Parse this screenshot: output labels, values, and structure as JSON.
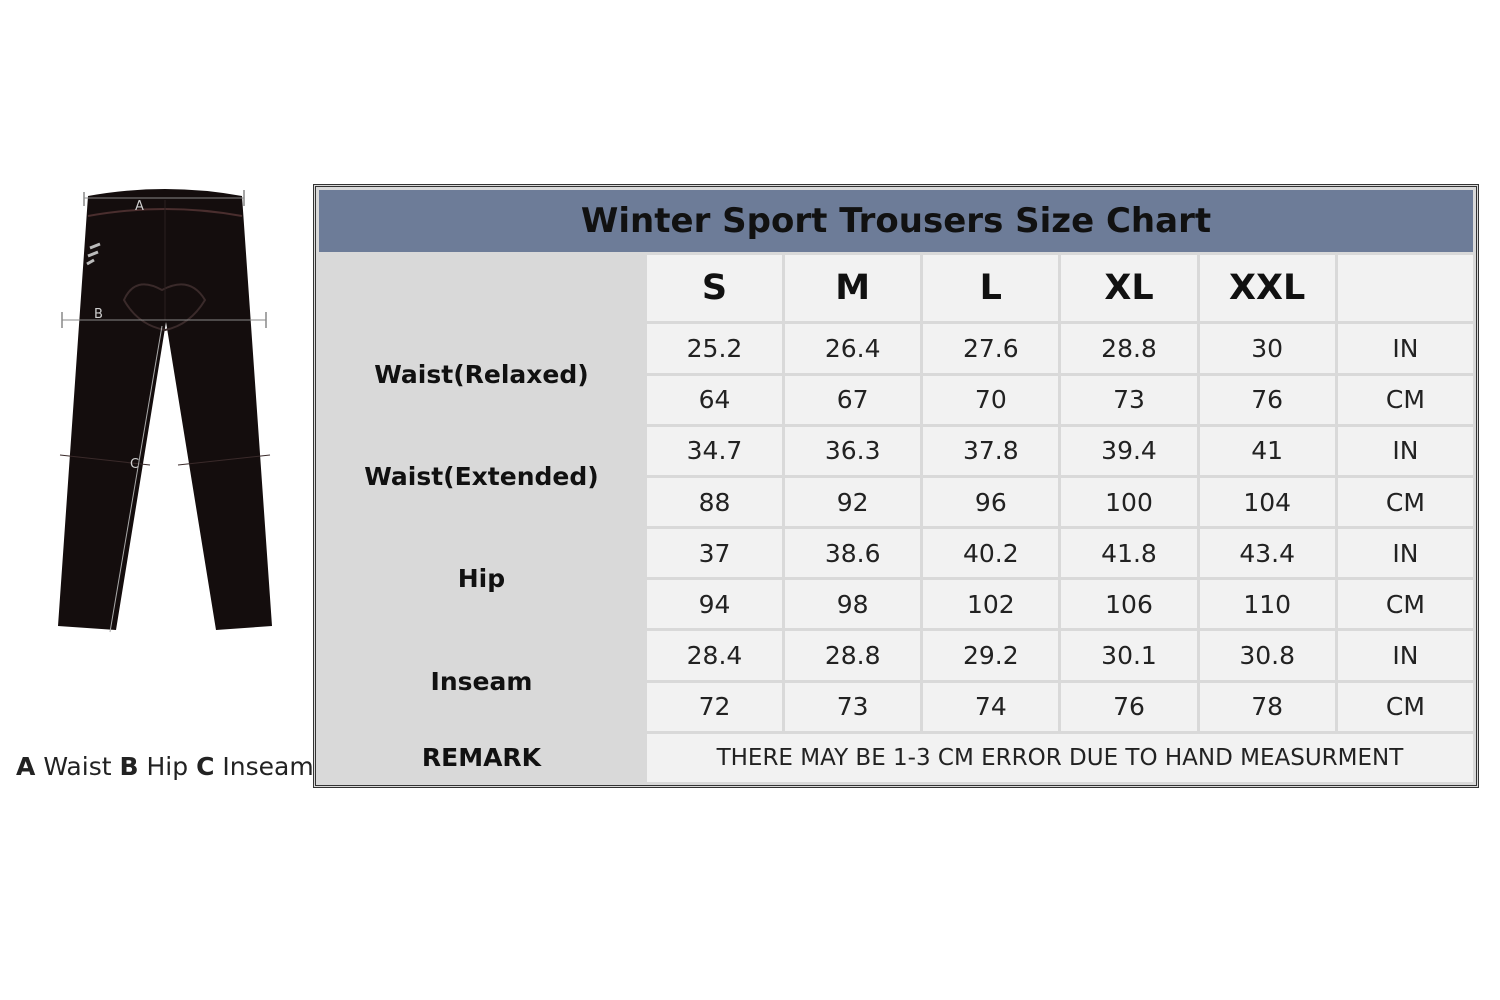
{
  "legend": {
    "a_key": "A",
    "a_label": "Waist",
    "b_key": "B",
    "b_label": "Hip",
    "c_key": "C",
    "c_label": "Inseam"
  },
  "illustration": {
    "mark_a": "A",
    "mark_b": "B",
    "mark_c": "C"
  },
  "table": {
    "title": "Winter Sport Trousers Size Chart",
    "sizes": [
      "S",
      "M",
      "L",
      "XL",
      "XXL"
    ],
    "rows": [
      {
        "label": "Waist(Relaxed)",
        "in": [
          "25.2",
          "26.4",
          "27.6",
          "28.8",
          "30"
        ],
        "in_unit": "IN",
        "cm": [
          "64",
          "67",
          "70",
          "73",
          "76"
        ],
        "cm_unit": "CM"
      },
      {
        "label": "Waist(Extended)",
        "in": [
          "34.7",
          "36.3",
          "37.8",
          "39.4",
          "41"
        ],
        "in_unit": "IN",
        "cm": [
          "88",
          "92",
          "96",
          "100",
          "104"
        ],
        "cm_unit": "CM"
      },
      {
        "label": "Hip",
        "in": [
          "37",
          "38.6",
          "40.2",
          "41.8",
          "43.4"
        ],
        "in_unit": "IN",
        "cm": [
          "94",
          "98",
          "102",
          "106",
          "110"
        ],
        "cm_unit": "CM"
      },
      {
        "label": "Inseam",
        "in": [
          "28.4",
          "28.8",
          "29.2",
          "30.1",
          "30.8"
        ],
        "in_unit": "IN",
        "cm": [
          "72",
          "73",
          "74",
          "76",
          "78"
        ],
        "cm_unit": "CM"
      }
    ],
    "remark_label": "REMARK",
    "remark_text": "THERE MAY BE 1-3 CM ERROR DUE TO HAND MEASURMENT"
  }
}
